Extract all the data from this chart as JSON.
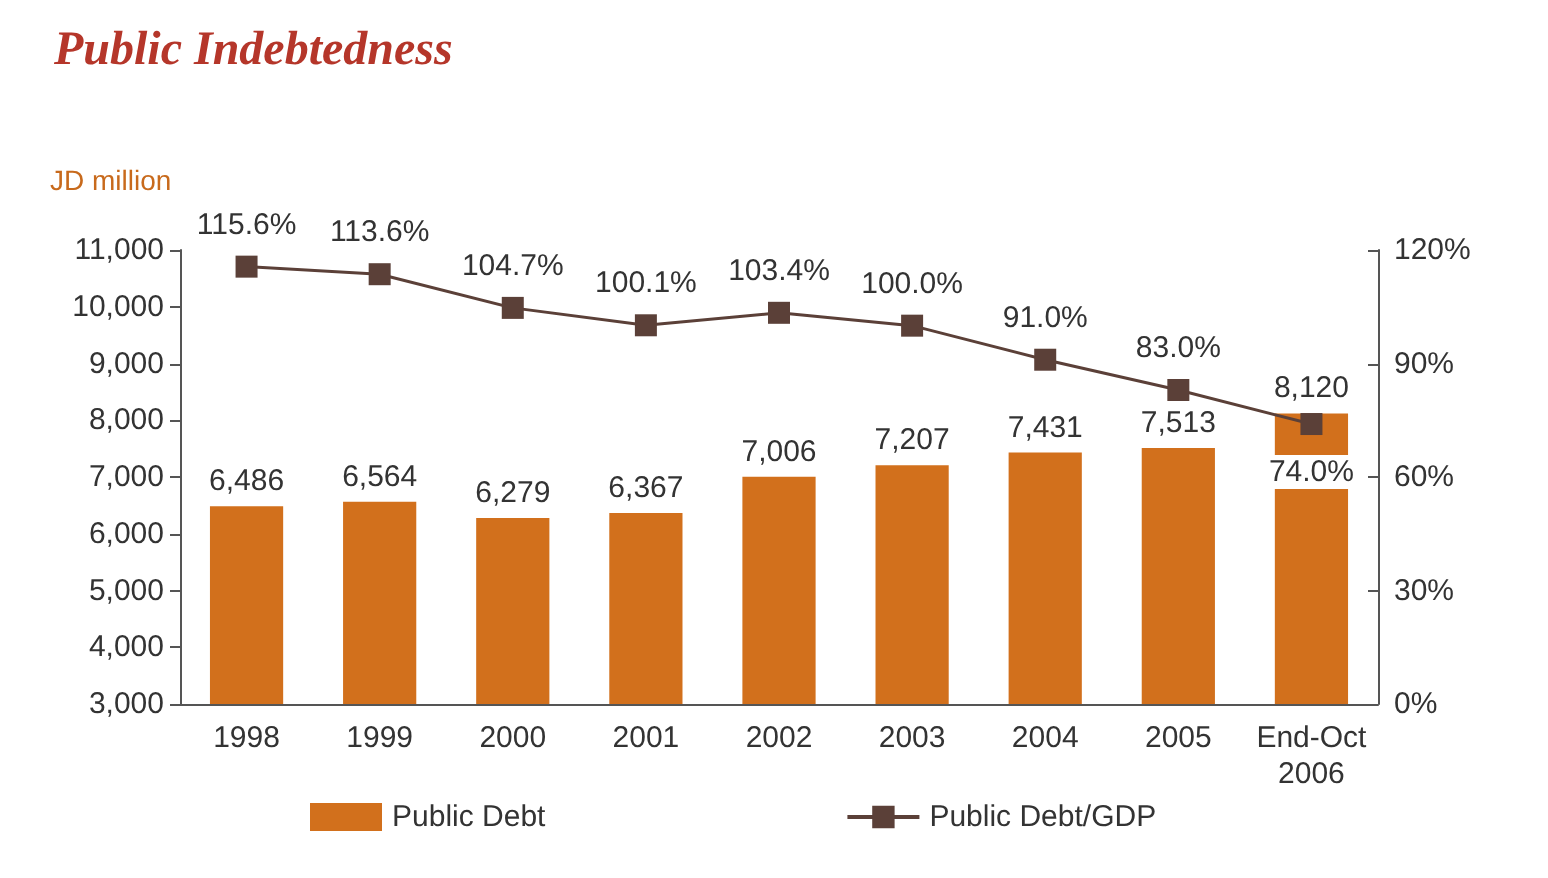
{
  "chart_data": {
    "type": "bar",
    "title": "Public Indebtedness",
    "ylabel": "JD million",
    "categories": [
      "1998",
      "1999",
      "2000",
      "2001",
      "2002",
      "2003",
      "2004",
      "2005",
      "End-Oct 2006"
    ],
    "series": [
      {
        "name": "Public Debt",
        "color": "#d2701c",
        "values": [
          6486,
          6564,
          6279,
          6367,
          7006,
          7207,
          7431,
          7513,
          8120
        ],
        "value_labels": [
          "6,486",
          "6,564",
          "6,279",
          "6,367",
          "7,006",
          "7,207",
          "7,431",
          "7,513",
          "8,120"
        ]
      },
      {
        "name": "Public Debt/GDP",
        "type": "line",
        "axis": "y2",
        "color": "#5b4038",
        "marker": "square",
        "values": [
          115.6,
          113.6,
          104.7,
          100.1,
          103.4,
          100.0,
          91.0,
          83.0,
          74.0
        ],
        "value_labels": [
          "115.6%",
          "113.6%",
          "104.7%",
          "100.1%",
          "103.4%",
          "100.0%",
          "91.0%",
          "83.0%",
          "74.0%"
        ]
      }
    ],
    "ylim": [
      3000,
      11000
    ],
    "yticks": [
      {
        "value": 3000,
        "label": "3,000"
      },
      {
        "value": 4000,
        "label": "4,000"
      },
      {
        "value": 5000,
        "label": "5,000"
      },
      {
        "value": 6000,
        "label": "6,000"
      },
      {
        "value": 7000,
        "label": "7,000"
      },
      {
        "value": 8000,
        "label": "8,000"
      },
      {
        "value": 9000,
        "label": "9,000"
      },
      {
        "value": 10000,
        "label": "10,000"
      },
      {
        "value": 11000,
        "label": "11,000"
      }
    ],
    "y2lim": [
      0,
      120
    ],
    "y2ticks": [
      {
        "value": 0,
        "label": "0%"
      },
      {
        "value": 30,
        "label": "30%"
      },
      {
        "value": 60,
        "label": "60%"
      },
      {
        "value": 90,
        "label": "90%"
      },
      {
        "value": 120,
        "label": "120%"
      }
    ],
    "grid": false,
    "legend": "bottom"
  }
}
